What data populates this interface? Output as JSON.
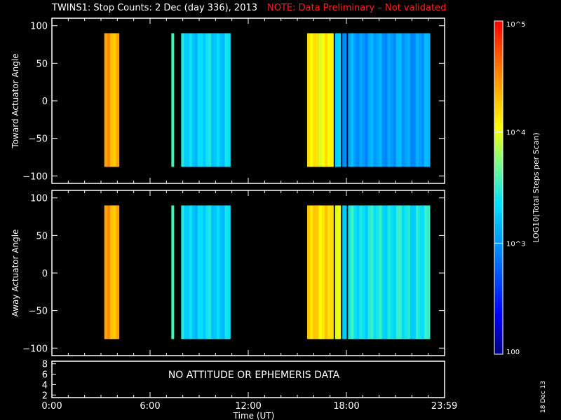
{
  "title": {
    "main": "TWINS1: Stop Counts:  2 Dec (day 336), 2013",
    "note": "NOTE: Data Preliminary – Not validated",
    "note_color": "#ff2020"
  },
  "date_stamp": "18 Dec 13",
  "colorbar": {
    "label": "LOG10(Total Steps per Scan)",
    "ticks": [
      "10^5",
      "10^4",
      "10^3",
      "100"
    ],
    "tick_values": [
      100000,
      10000,
      1000,
      100
    ],
    "scale": "log",
    "range": [
      100,
      100000
    ]
  },
  "chart_data": [
    {
      "type": "heatmap",
      "panel": "toward",
      "ylabel": "Toward Actuator Angle",
      "yticks": [
        "100",
        "50",
        "0",
        "−50",
        "−100"
      ],
      "ylim": [
        -110,
        110
      ],
      "xlim": [
        0,
        24
      ],
      "data_y_range": [
        -88,
        90
      ],
      "segments": [
        {
          "start_hr": 3.2,
          "end_hr": 4.1,
          "log10": 4.35
        },
        {
          "start_hr": 7.3,
          "end_hr": 7.45,
          "log10": 3.4
        },
        {
          "start_hr": 7.9,
          "end_hr": 10.9,
          "log10": 3.3
        },
        {
          "start_hr": 15.6,
          "end_hr": 17.2,
          "log10": 4.1
        },
        {
          "start_hr": 17.3,
          "end_hr": 17.65,
          "log10": 3.3
        },
        {
          "start_hr": 17.75,
          "end_hr": 18.0,
          "log10": 3.0
        },
        {
          "start_hr": 18.1,
          "end_hr": 23.1,
          "log10": 3.05
        }
      ]
    },
    {
      "type": "heatmap",
      "panel": "away",
      "ylabel": "Away Actuator Angle",
      "yticks": [
        "100",
        "50",
        "0",
        "−50",
        "−100"
      ],
      "ylim": [
        -110,
        110
      ],
      "xlim": [
        0,
        24
      ],
      "data_y_range": [
        -88,
        90
      ],
      "segments": [
        {
          "start_hr": 3.2,
          "end_hr": 4.1,
          "log10": 4.35
        },
        {
          "start_hr": 7.3,
          "end_hr": 7.45,
          "log10": 3.4
        },
        {
          "start_hr": 7.9,
          "end_hr": 10.9,
          "log10": 3.3
        },
        {
          "start_hr": 15.6,
          "end_hr": 17.2,
          "log10": 4.2
        },
        {
          "start_hr": 17.3,
          "end_hr": 17.65,
          "log10": 4.0
        },
        {
          "start_hr": 17.75,
          "end_hr": 18.0,
          "log10": 3.3
        },
        {
          "start_hr": 18.1,
          "end_hr": 23.1,
          "log10": 3.4
        }
      ]
    }
  ],
  "bottom_panel": {
    "yticks": [
      "8",
      "6",
      "4",
      "2"
    ],
    "message": "NO ATTITUDE OR EPHEMERIS DATA"
  },
  "xaxis": {
    "ticks": [
      "0:00",
      "6:00",
      "12:00",
      "18:00",
      "23:59"
    ],
    "tick_values": [
      0,
      6,
      12,
      18,
      23.98
    ],
    "label": "Time (UT)"
  }
}
